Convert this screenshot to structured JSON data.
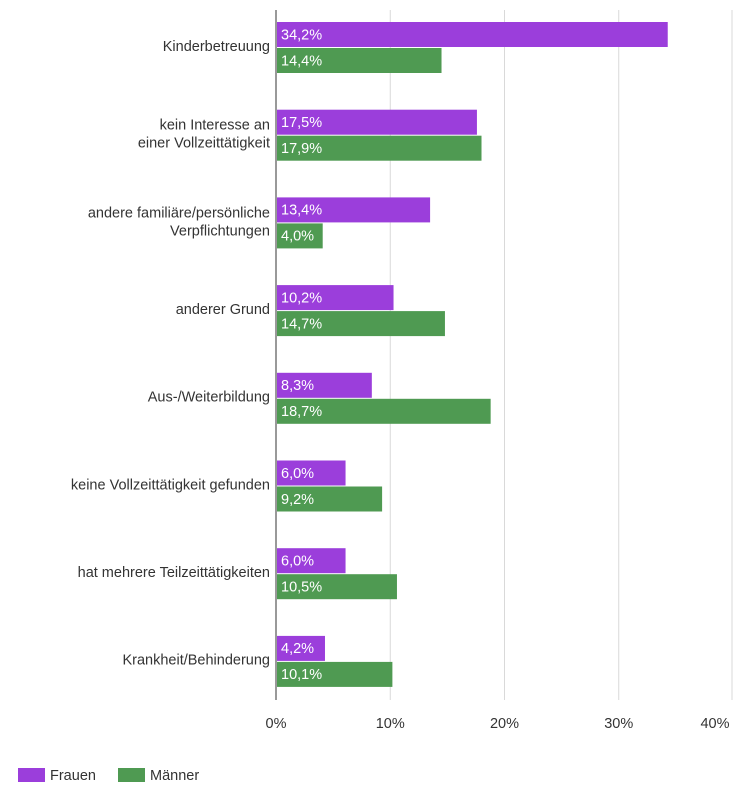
{
  "chart_data": {
    "type": "bar",
    "orientation": "horizontal",
    "categories": [
      "Kinderbetreuung",
      "kein Interesse an\neiner Vollzeittätigkeit",
      "andere familiäre/persönliche\nVerpflichtungen",
      "anderer Grund",
      "Aus-/Weiterbildung",
      "keine Vollzeittätigkeit gefunden",
      "hat mehrere Teilzeittätigkeiten",
      "Krankheit/Behinderung"
    ],
    "series": [
      {
        "name": "Frauen",
        "color": "#9b3edb",
        "values": [
          34.2,
          17.5,
          13.4,
          10.2,
          8.3,
          6.0,
          6.0,
          4.2
        ],
        "value_labels": [
          "34,2%",
          "17,5%",
          "13,4%",
          "10,2%",
          "8,3%",
          "6,0%",
          "6,0%",
          "4,2%"
        ]
      },
      {
        "name": "Männer",
        "color": "#4f9a52",
        "values": [
          14.4,
          17.9,
          4.0,
          14.7,
          18.7,
          9.2,
          10.5,
          10.1
        ],
        "value_labels": [
          "14,4%",
          "17,9%",
          "4,0%",
          "14,7%",
          "18,7%",
          "9,2%",
          "10,5%",
          "10,1%"
        ]
      }
    ],
    "xlim": [
      0,
      40
    ],
    "xticks": [
      {
        "value": 0,
        "label": "0%"
      },
      {
        "value": 10,
        "label": "10%"
      },
      {
        "value": 20,
        "label": "20%"
      },
      {
        "value": 30,
        "label": "30%"
      },
      {
        "value": 40,
        "label": "40%"
      }
    ],
    "grid": true,
    "legend": "bottom-left"
  }
}
